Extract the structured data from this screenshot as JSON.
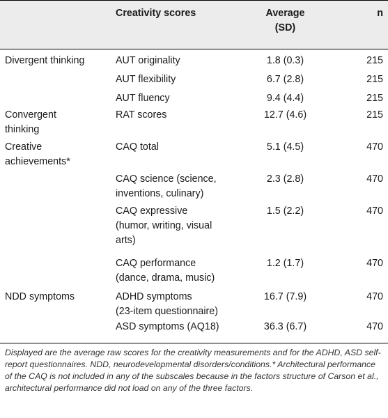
{
  "table": {
    "headers": {
      "category": "",
      "measure": "Creativity scores",
      "average_line1": "Average",
      "average_line2": "(SD)",
      "n": "n"
    },
    "rows": [
      {
        "category": [
          "Divergent thinking"
        ],
        "measure": [
          "AUT originality"
        ],
        "average": "1.8 (0.3)",
        "n": "215"
      },
      {
        "category": [],
        "measure": [
          "AUT flexibility"
        ],
        "average": "6.7 (2.8)",
        "n": "215"
      },
      {
        "category": [],
        "measure": [
          "AUT fluency"
        ],
        "average": "9.4 (4.4)",
        "n": "215"
      },
      {
        "category": [
          "Convergent",
          "thinking"
        ],
        "measure": [
          "RAT scores"
        ],
        "average": "12.7 (4.6)",
        "n": "215"
      },
      {
        "category": [
          "Creative",
          "achievements*"
        ],
        "measure": [
          "CAQ total"
        ],
        "average": "5.1 (4.5)",
        "n": "470"
      },
      {
        "category": [],
        "measure": [
          "CAQ science (science,",
          "inventions, culinary)"
        ],
        "average": "2.3 (2.8)",
        "n": "470"
      },
      {
        "category": [],
        "measure": [
          "CAQ expressive",
          "(humor, writing, visual",
          "arts)"
        ],
        "average": "1.5 (2.2)",
        "n": "470"
      },
      {
        "category": [],
        "measure": [
          "CAQ performance",
          "(dance, drama, music)"
        ],
        "average": "1.2 (1.7)",
        "n": "470"
      },
      {
        "category": [
          "NDD symptoms"
        ],
        "measure": [
          "ADHD symptoms",
          "(23-item questionnaire)"
        ],
        "average": "16.7 (7.9)",
        "n": "470"
      },
      {
        "category": [],
        "measure": [
          "ASD symptoms (AQ18)"
        ],
        "average": "36.3 (6.7)",
        "n": "470"
      }
    ],
    "footnote": "Displayed are the average raw scores for the creativity measurements and for the ADHD, ASD self-report questionnaires. NDD, neurodevelopmental disorders/conditions.* Architectural performance of the CAQ is not included in any of the subscales because in the factors structure of Carson et al., architectural performance did not load on any of the three factors."
  }
}
